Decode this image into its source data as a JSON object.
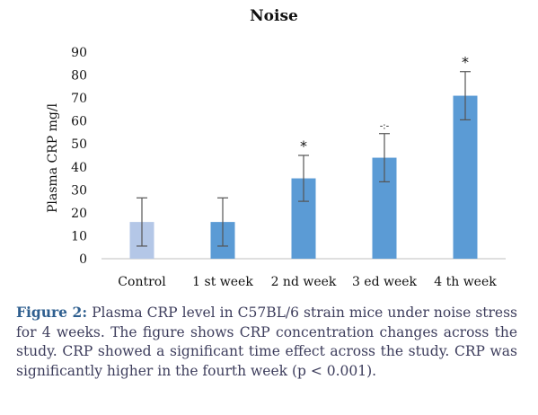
{
  "chart_data": {
    "type": "bar",
    "title": "Noise",
    "ylabel": "Plasma CRP mg/l",
    "xlabel": "",
    "ylim": [
      0,
      90
    ],
    "yticks": [
      0,
      10,
      20,
      30,
      40,
      50,
      60,
      70,
      80,
      90
    ],
    "categories": [
      "Control",
      "1 st week",
      "2 nd week",
      "3 ed week",
      "4 th week"
    ],
    "values": [
      16,
      16,
      35,
      44,
      71
    ],
    "errors": [
      10.5,
      10.5,
      10,
      10.5,
      10.5
    ],
    "annotations": [
      "",
      "",
      "*",
      "-:-",
      "*"
    ],
    "colors": [
      "#b4c7e7",
      "#5b9bd5",
      "#5b9bd5",
      "#5b9bd5",
      "#5b9bd5"
    ],
    "grid": false,
    "legend": "none"
  },
  "caption": {
    "label": "Figure 2:",
    "text": " Plasma CRP level in C57BL/6 strain mice under noise stress for 4 weeks. The figure shows CRP concentration changes across the study. CRP showed a significant time effect across the study. CRP was significantly higher in the fourth week (p < 0.001)."
  }
}
